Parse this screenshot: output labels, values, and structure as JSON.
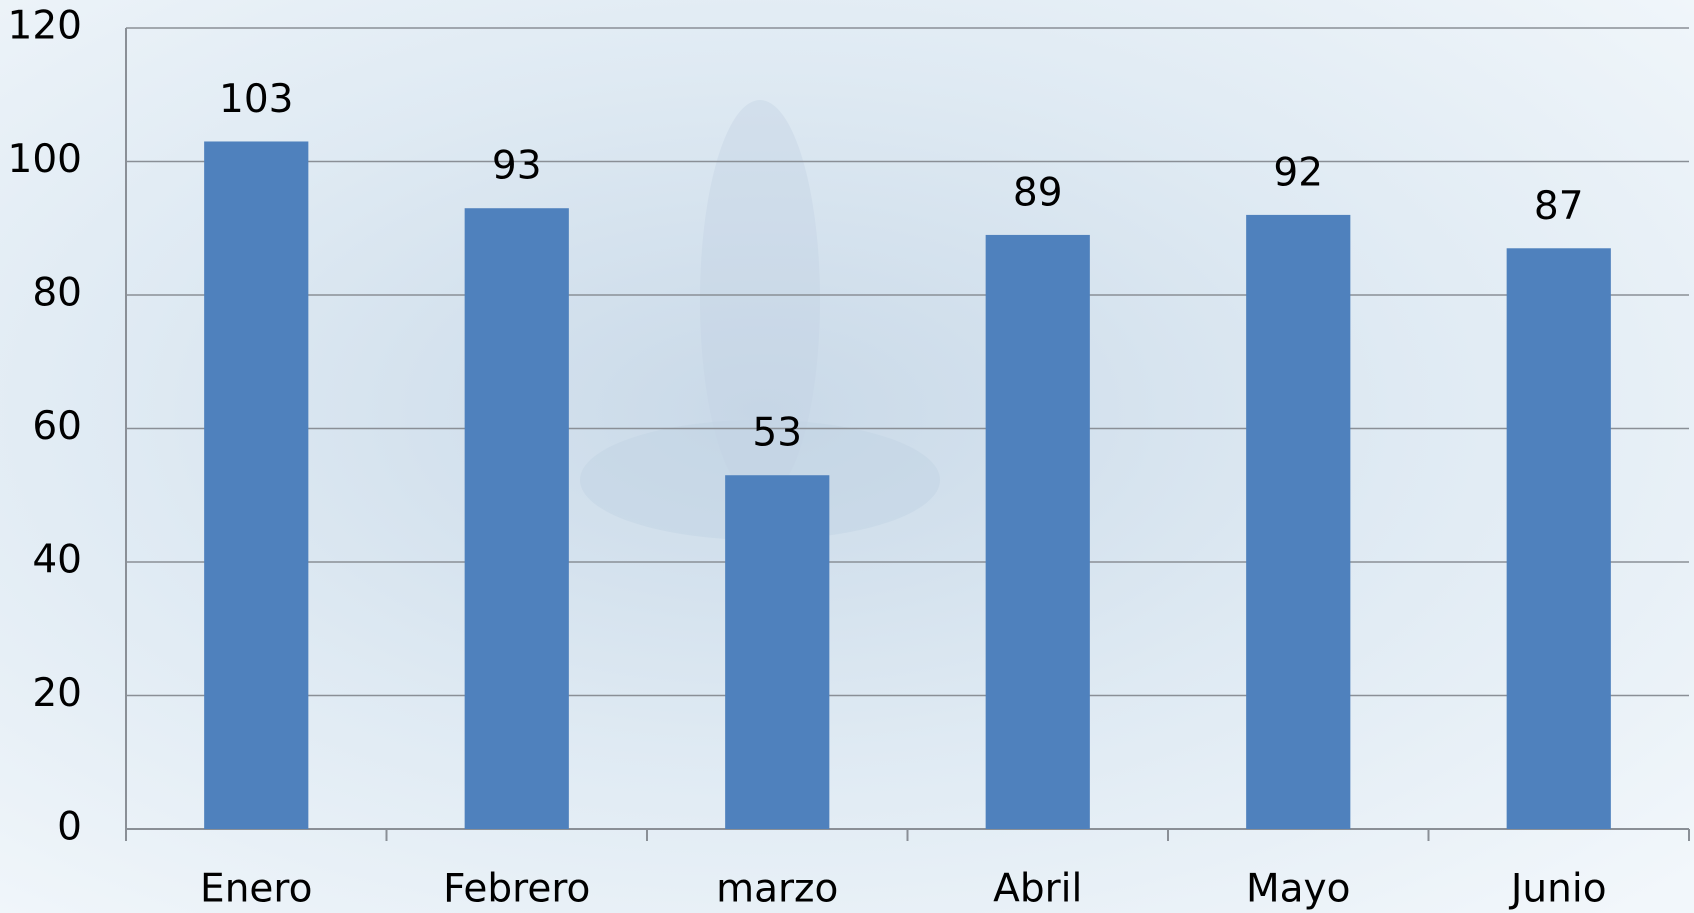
{
  "chart_data": {
    "type": "bar",
    "categories": [
      "Enero",
      "Febrero",
      "marzo",
      "Abril",
      "Mayo",
      "Junio"
    ],
    "values": [
      103,
      93,
      53,
      89,
      92,
      87
    ],
    "color": "#4f81bd",
    "ylim": [
      0,
      120
    ],
    "yticks": [
      0,
      20,
      40,
      60,
      80,
      100,
      120
    ],
    "grid": true
  }
}
